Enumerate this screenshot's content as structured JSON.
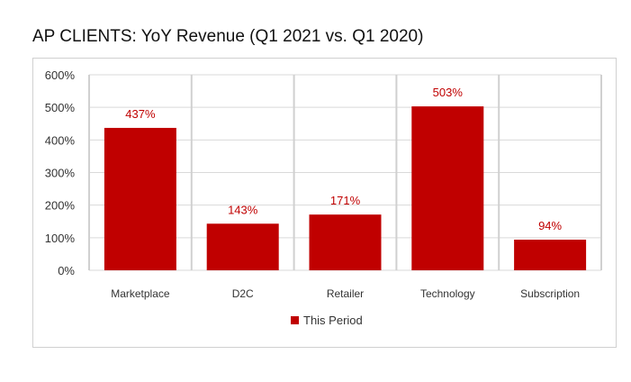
{
  "title": "AP CLIENTS:  YoY Revenue (Q1 2021 vs. Q1 2020)",
  "chart_data": {
    "type": "bar",
    "categories": [
      "Marketplace",
      "D2C",
      "Retailer",
      "Technology",
      "Subscription"
    ],
    "series": [
      {
        "name": "This Period",
        "values": [
          437,
          143,
          171,
          503,
          94
        ],
        "labels": [
          "437%",
          "143%",
          "171%",
          "503%",
          "94%"
        ]
      }
    ],
    "ylim": [
      0,
      600
    ],
    "yticks": [
      0,
      100,
      200,
      300,
      400,
      500,
      600
    ],
    "ytick_labels": [
      "0%",
      "100%",
      "200%",
      "300%",
      "400%",
      "500%",
      "600%"
    ],
    "grid": true,
    "legend": "bottom",
    "colors": {
      "bar": "#c00000",
      "label": "#c00000",
      "grid": "#d9d9d9",
      "category_separator": "#d0d0d0",
      "axis_text": "#333333"
    }
  }
}
